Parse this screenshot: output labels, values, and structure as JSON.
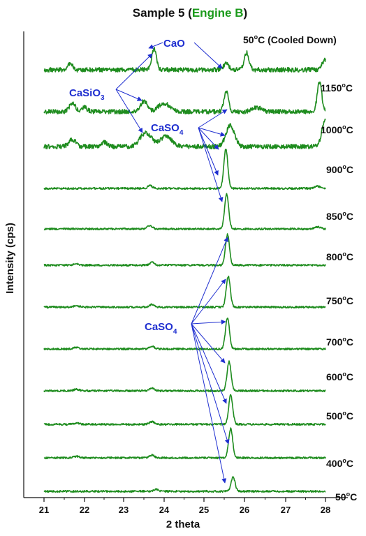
{
  "chart_data": {
    "type": "line",
    "title": {
      "prefix": "Sample 5 (",
      "highlight": "Engine B",
      "suffix": ")",
      "highlight_color": "#1a9a1a"
    },
    "xlabel": "2 theta",
    "ylabel": "Intensity (cps)",
    "xlim": [
      21,
      28
    ],
    "x_ticks": [
      "21",
      "22",
      "23",
      "24",
      "25",
      "26",
      "27",
      "28"
    ],
    "grid": false,
    "line_color": "#1e8c1e",
    "series": [
      {
        "name": "50°C",
        "label_base": "50",
        "label_unit": "C",
        "label_extra": "",
        "peaks": [
          [
            25.72,
            20,
            0.07
          ],
          [
            23.8,
            3,
            0.08
          ]
        ]
      },
      {
        "name": "400°C",
        "label_base": "400",
        "label_unit": "C",
        "label_extra": "",
        "peaks": [
          [
            25.66,
            42,
            0.07
          ],
          [
            23.7,
            4,
            0.08
          ],
          [
            21.8,
            2,
            0.1
          ]
        ]
      },
      {
        "name": "500°C",
        "label_base": "500",
        "label_unit": "C",
        "label_extra": "",
        "peaks": [
          [
            25.66,
            42,
            0.07
          ],
          [
            23.7,
            4,
            0.08
          ],
          [
            21.8,
            2,
            0.1
          ]
        ]
      },
      {
        "name": "600°C",
        "label_base": "600",
        "label_unit": "C",
        "label_extra": "",
        "peaks": [
          [
            25.62,
            42,
            0.07
          ],
          [
            23.7,
            4,
            0.08
          ],
          [
            21.8,
            2,
            0.1
          ]
        ]
      },
      {
        "name": "700°C",
        "label_base": "700",
        "label_unit": "C",
        "label_extra": "",
        "peaks": [
          [
            25.58,
            44,
            0.07
          ],
          [
            23.7,
            4,
            0.08
          ],
          [
            21.8,
            2,
            0.1
          ]
        ]
      },
      {
        "name": "750°C",
        "label_base": "750",
        "label_unit": "C",
        "label_extra": "",
        "peaks": [
          [
            25.6,
            44,
            0.07
          ],
          [
            23.7,
            4,
            0.08
          ],
          [
            21.8,
            2,
            0.1
          ]
        ]
      },
      {
        "name": "800°C",
        "label_base": "800",
        "label_unit": "C",
        "label_extra": "",
        "peaks": [
          [
            25.58,
            44,
            0.07
          ],
          [
            23.7,
            4,
            0.08
          ],
          [
            21.8,
            2,
            0.1
          ]
        ]
      },
      {
        "name": "850°C",
        "label_base": "850",
        "label_unit": "C",
        "label_extra": "",
        "peaks": [
          [
            25.56,
            50,
            0.07
          ],
          [
            23.65,
            5,
            0.08
          ],
          [
            27.8,
            3,
            0.1
          ]
        ]
      },
      {
        "name": "900°C",
        "label_base": "900",
        "label_unit": "C",
        "label_extra": "",
        "peaks": [
          [
            25.54,
            56,
            0.07
          ],
          [
            23.65,
            4,
            0.08
          ],
          [
            27.8,
            3,
            0.1
          ]
        ]
      },
      {
        "name": "1000°C",
        "label_base": "1000",
        "label_unit": "C",
        "label_extra": "",
        "peaks": [
          [
            25.65,
            30,
            0.15
          ],
          [
            23.55,
            20,
            0.2
          ],
          [
            24.05,
            15,
            0.2
          ],
          [
            21.7,
            10,
            0.12
          ],
          [
            22.5,
            6,
            0.1
          ],
          [
            28.0,
            40,
            0.12
          ]
        ]
      },
      {
        "name": "1150°C",
        "label_base": "1150",
        "label_unit": "C",
        "label_extra": "",
        "peaks": [
          [
            25.55,
            30,
            0.08
          ],
          [
            23.5,
            15,
            0.12
          ],
          [
            24.0,
            12,
            0.2
          ],
          [
            21.7,
            12,
            0.1
          ],
          [
            22.0,
            6,
            0.1
          ],
          [
            26.3,
            6,
            0.15
          ],
          [
            27.85,
            42,
            0.08
          ]
        ]
      },
      {
        "name": "50°C (Cooled Down)",
        "label_base": "50",
        "label_unit": "C",
        "label_extra": " (Cooled Down)",
        "peaks": [
          [
            23.75,
            30,
            0.08
          ],
          [
            26.05,
            25,
            0.08
          ],
          [
            21.65,
            10,
            0.08
          ],
          [
            25.55,
            8,
            0.1
          ],
          [
            28.0,
            14,
            0.12
          ]
        ]
      }
    ],
    "annotations": [
      {
        "text": "CaO",
        "sub": "",
        "color": "#1f2fd0"
      },
      {
        "text": "CaSiO",
        "sub": "3",
        "color": "#1f2fd0"
      },
      {
        "text": "CaSO",
        "sub": "4",
        "color": "#1f2fd0"
      },
      {
        "text": "CaSO",
        "sub": "4",
        "color": "#1f2fd0"
      }
    ]
  }
}
